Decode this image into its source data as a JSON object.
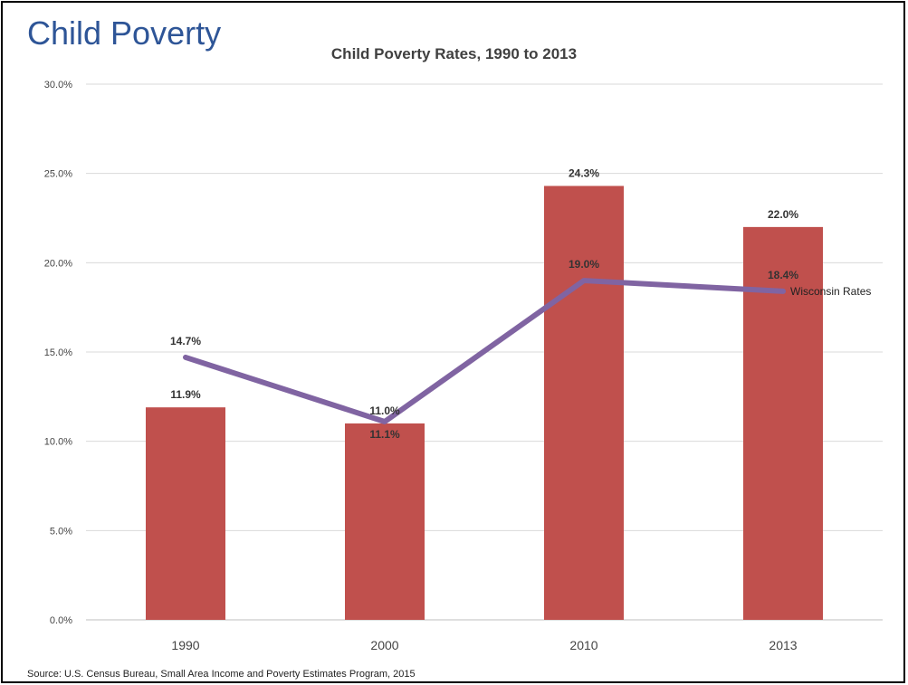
{
  "slide_title": "Child Poverty",
  "source": "Source: U.S. Census Bureau, Small Area Income and Poverty Estimates Program, 2015",
  "chart_data": {
    "type": "bar",
    "title": "Child Poverty Rates, 1990 to 2013",
    "categories": [
      "1990",
      "2000",
      "2010",
      "2013"
    ],
    "ylim": [
      0,
      30
    ],
    "yticks": [
      "0.0%",
      "5.0%",
      "10.0%",
      "15.0%",
      "20.0%",
      "25.0%",
      "30.0%"
    ],
    "grid": true,
    "series": [
      {
        "type": "bar",
        "values": [
          11.9,
          11.0,
          24.3,
          22.0
        ],
        "labels": [
          "11.9%",
          "11.0%",
          "24.3%",
          "22.0%"
        ],
        "color": "#c0504d"
      },
      {
        "type": "line",
        "name": "Wisconsin Rates",
        "values": [
          14.7,
          11.1,
          19.0,
          18.4
        ],
        "labels": [
          "14.7%",
          "11.1%",
          "19.0%",
          "18.4%"
        ],
        "color": "#8064a2"
      }
    ]
  }
}
